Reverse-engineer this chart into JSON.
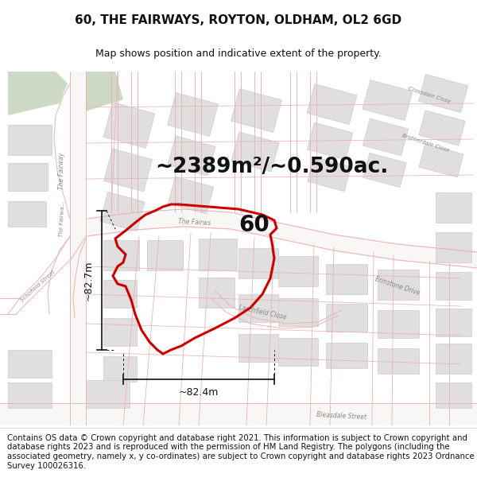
{
  "title": "60, THE FAIRWAYS, ROYTON, OLDHAM, OL2 6GD",
  "subtitle": "Map shows position and indicative extent of the property.",
  "footer": "Contains OS data © Crown copyright and database right 2021. This information is subject to Crown copyright and database rights 2023 and is reproduced with the permission of HM Land Registry. The polygons (including the associated geometry, namely x, y co-ordinates) are subject to Crown copyright and database rights 2023 Ordnance Survey 100026316.",
  "area_label": "~2389m²/~0.590ac.",
  "property_number": "60",
  "dim_horizontal": "~82.4m",
  "dim_vertical": "~82.7m",
  "map_bg": "#f5f4f2",
  "road_fill": "#ffffff",
  "building_fill": "#e0dede",
  "building_edge": "#cccccc",
  "green_fill": "#cdd8c5",
  "road_line_color": "#e8b4b4",
  "prop_edge": "#cc0000",
  "prop_lw": 2.2,
  "title_fontsize": 11,
  "subtitle_fontsize": 9,
  "footer_fontsize": 7.3,
  "area_fontsize": 19,
  "number_fontsize": 20
}
